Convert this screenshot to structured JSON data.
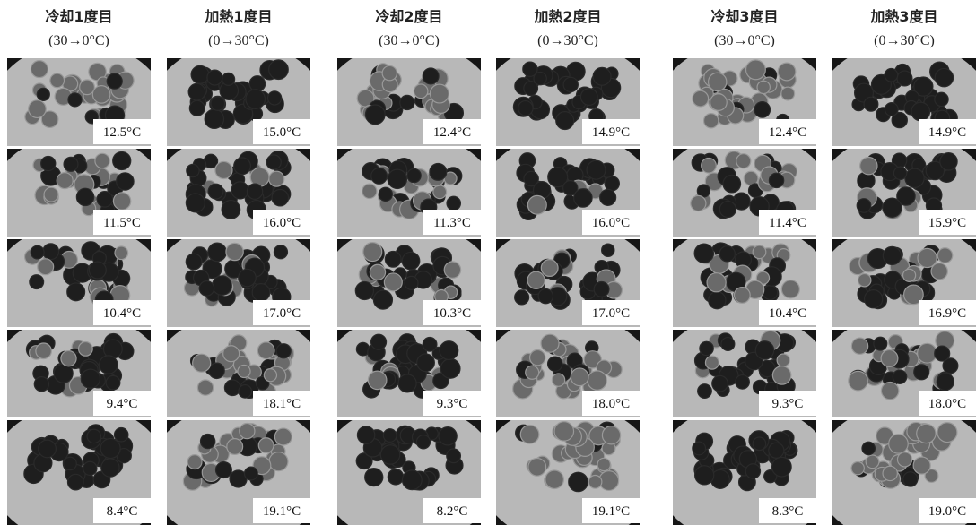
{
  "columns": [
    {
      "title": "冷却1度目",
      "subtitle": "(30→0°C)",
      "labels": [
        "12.5°C",
        "11.5°C",
        "10.4°C",
        "9.4°C",
        "8.4°C"
      ]
    },
    {
      "title": "加熱1度目",
      "subtitle": "(0→30°C)",
      "labels": [
        "15.0°C",
        "16.0°C",
        "17.0°C",
        "18.1°C",
        "19.1°C"
      ]
    },
    {
      "title": "冷却2度目",
      "subtitle": "(30→0°C)",
      "labels": [
        "12.4°C",
        "11.3°C",
        "10.3°C",
        "9.3°C",
        "8.2°C"
      ]
    },
    {
      "title": "加熱2度目",
      "subtitle": "(0→30°C)",
      "labels": [
        "14.9°C",
        "16.0°C",
        "17.0°C",
        "18.0°C",
        "19.1°C"
      ]
    },
    {
      "title": "冷却3度目",
      "subtitle": "(30→0°C)",
      "labels": [
        "12.4°C",
        "11.4°C",
        "10.4°C",
        "9.3°C",
        "8.3°C"
      ]
    },
    {
      "title": "加熱3度目",
      "subtitle": "(0→30°C)",
      "labels": [
        "14.9°C",
        "15.9°C",
        "16.9°C",
        "18.0°C",
        "19.0°C"
      ]
    }
  ]
}
